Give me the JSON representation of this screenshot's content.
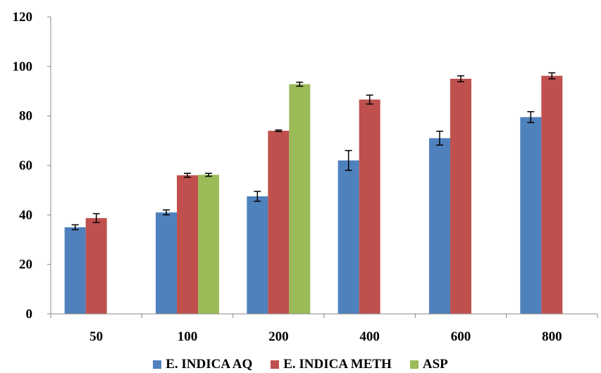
{
  "chart_data": {
    "type": "bar",
    "categories": [
      "50",
      "100",
      "200",
      "400",
      "600",
      "800"
    ],
    "series": [
      {
        "name": "E. INDICA AQ",
        "color": "#4f81bd",
        "values": [
          35,
          41,
          47.5,
          62,
          71,
          79.5
        ],
        "errors": [
          1,
          1,
          2,
          4,
          2.8,
          2.2
        ]
      },
      {
        "name": "E. INDICA METH",
        "color": "#c0504d",
        "values": [
          38.7,
          56,
          74,
          86.6,
          95,
          96.2
        ],
        "errors": [
          1.8,
          0.8,
          0.3,
          1.8,
          1.2,
          1.2
        ]
      },
      {
        "name": "ASP",
        "color": "#9bbb59",
        "values": [
          null,
          56.2,
          92.8,
          null,
          null,
          null
        ],
        "errors": [
          null,
          0.6,
          0.8,
          null,
          null,
          null
        ]
      }
    ],
    "yticks": [
      0,
      20,
      40,
      60,
      80,
      100,
      120
    ],
    "ylim": [
      0,
      120
    ],
    "grid": false,
    "legend_position": "bottom"
  }
}
